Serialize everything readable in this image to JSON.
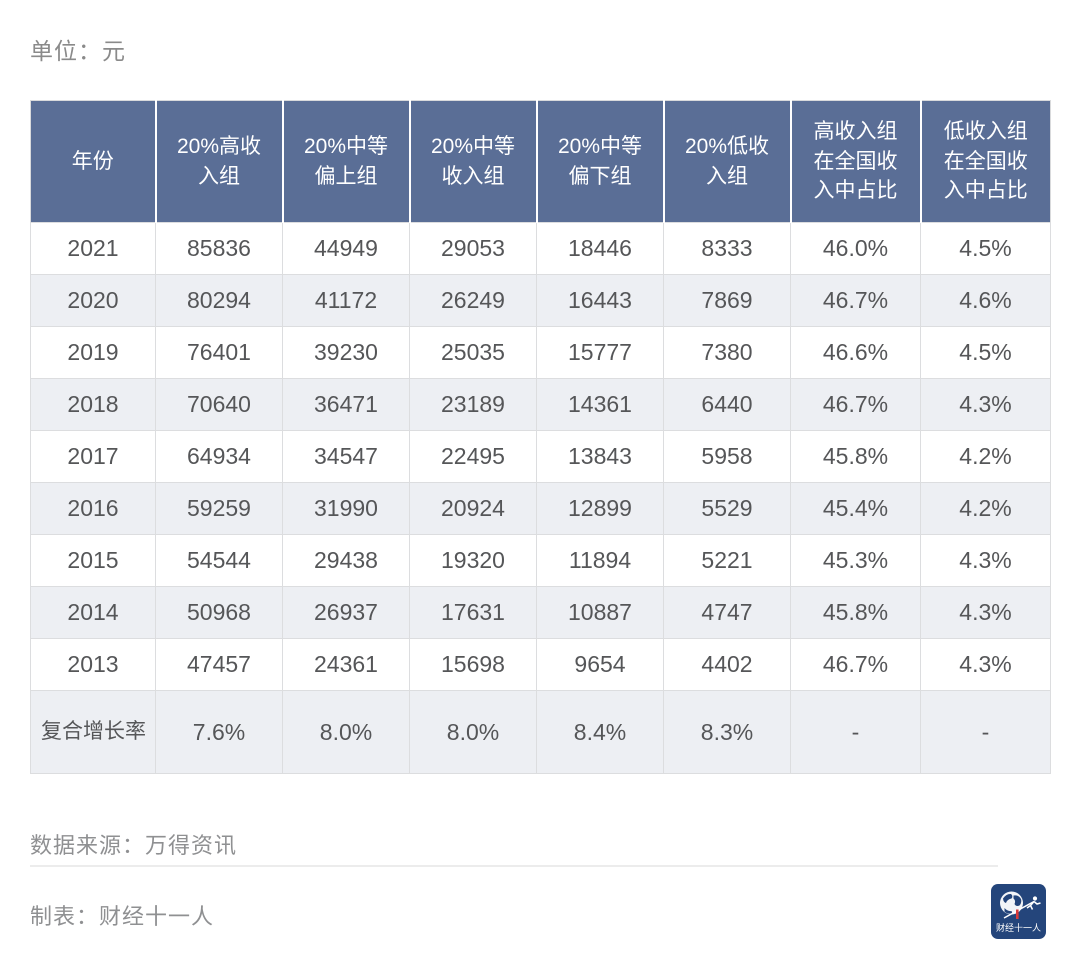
{
  "header": {
    "unit_label": "单位：元"
  },
  "chart_data": {
    "type": "table",
    "columns": [
      "年份",
      "20%高收入组",
      "20%中等偏上组",
      "20%中等收入组",
      "20%中等偏下组",
      "20%低收入组",
      "高收入组在全国收入中占比",
      "低收入组在全国收入中占比"
    ],
    "rows": [
      [
        "2021",
        "85836",
        "44949",
        "29053",
        "18446",
        "8333",
        "46.0%",
        "4.5%"
      ],
      [
        "2020",
        "80294",
        "41172",
        "26249",
        "16443",
        "7869",
        "46.7%",
        "4.6%"
      ],
      [
        "2019",
        "76401",
        "39230",
        "25035",
        "15777",
        "7380",
        "46.6%",
        "4.5%"
      ],
      [
        "2018",
        "70640",
        "36471",
        "23189",
        "14361",
        "6440",
        "46.7%",
        "4.3%"
      ],
      [
        "2017",
        "64934",
        "34547",
        "22495",
        "13843",
        "5958",
        "45.8%",
        "4.2%"
      ],
      [
        "2016",
        "59259",
        "31990",
        "20924",
        "12899",
        "5529",
        "45.4%",
        "4.2%"
      ],
      [
        "2015",
        "54544",
        "29438",
        "19320",
        "11894",
        "5221",
        "45.3%",
        "4.3%"
      ],
      [
        "2014",
        "50968",
        "26937",
        "17631",
        "10887",
        "4747",
        "45.8%",
        "4.3%"
      ],
      [
        "2013",
        "47457",
        "24361",
        "15698",
        "9654",
        "4402",
        "46.7%",
        "4.3%"
      ]
    ],
    "summary_row": [
      "复合增长率",
      "7.6%",
      "8.0%",
      "8.0%",
      "8.4%",
      "8.3%",
      "-",
      "-"
    ],
    "layout": {
      "grid": "on",
      "header_position": "top",
      "stripe": "even-rows"
    }
  },
  "footer": {
    "source_label": "数据来源：万得资讯",
    "credit_label": "制表：财经十一人",
    "logo_text": "财经十一人"
  },
  "colors": {
    "header_bg": "#5a6e96",
    "stripe_bg": "#edeff3",
    "logo_bg": "#24457b",
    "logo_accent": "#d93a3a"
  }
}
